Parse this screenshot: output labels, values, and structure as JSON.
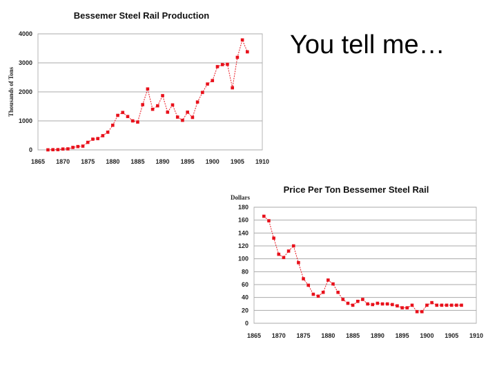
{
  "slide": {
    "text": "You tell me…"
  },
  "chart_data": [
    {
      "type": "line",
      "title": "Bessemer Steel Rail Production",
      "ylabel": "Thousands of Tons",
      "xlabel": "",
      "xlim": [
        1865,
        1910
      ],
      "ylim": [
        0,
        4000
      ],
      "xticks": [
        1865,
        1870,
        1875,
        1880,
        1885,
        1890,
        1895,
        1900,
        1905,
        1910
      ],
      "yticks": [
        0,
        1000,
        2000,
        3000,
        4000
      ],
      "grid": true,
      "color": "#e8111b",
      "x": [
        1867,
        1868,
        1869,
        1870,
        1871,
        1872,
        1873,
        1874,
        1875,
        1876,
        1877,
        1878,
        1879,
        1880,
        1881,
        1882,
        1883,
        1884,
        1885,
        1886,
        1887,
        1888,
        1889,
        1890,
        1891,
        1892,
        1893,
        1894,
        1895,
        1896,
        1897,
        1898,
        1899,
        1900,
        1901,
        1902,
        1903,
        1904,
        1905,
        1906,
        1907
      ],
      "values": [
        2,
        7,
        9,
        30,
        35,
        85,
        115,
        130,
        260,
        370,
        390,
        490,
        610,
        850,
        1190,
        1290,
        1150,
        1000,
        960,
        1560,
        2100,
        1400,
        1520,
        1870,
        1300,
        1550,
        1130,
        1020,
        1300,
        1120,
        1650,
        1980,
        2270,
        2390,
        2870,
        2940,
        2950,
        2140,
        3190,
        3790,
        3380
      ]
    },
    {
      "type": "line",
      "title": "Price Per Ton Bessemer Steel Rail",
      "ylabel": "Dollars",
      "xlabel": "",
      "xlim": [
        1865,
        1910
      ],
      "ylim": [
        0,
        180
      ],
      "xticks": [
        1865,
        1870,
        1875,
        1880,
        1885,
        1890,
        1895,
        1900,
        1905,
        1910
      ],
      "yticks": [
        0,
        20,
        40,
        60,
        80,
        100,
        120,
        140,
        160,
        180
      ],
      "grid": true,
      "color": "#e8111b",
      "x": [
        1867,
        1868,
        1869,
        1870,
        1871,
        1872,
        1873,
        1874,
        1875,
        1876,
        1877,
        1878,
        1879,
        1880,
        1881,
        1882,
        1883,
        1884,
        1885,
        1886,
        1887,
        1888,
        1889,
        1890,
        1891,
        1892,
        1893,
        1894,
        1895,
        1896,
        1897,
        1898,
        1899,
        1900,
        1901,
        1902,
        1903,
        1904,
        1905,
        1906,
        1907
      ],
      "values": [
        166,
        159,
        132,
        107,
        102,
        112,
        120,
        94,
        69,
        59,
        45,
        42,
        48,
        67,
        61,
        48,
        37,
        31,
        28,
        34,
        37,
        30,
        29,
        31,
        30,
        30,
        29,
        27,
        24,
        24,
        28,
        18,
        18,
        28,
        32,
        28,
        28,
        28,
        28,
        28,
        28
      ]
    }
  ]
}
